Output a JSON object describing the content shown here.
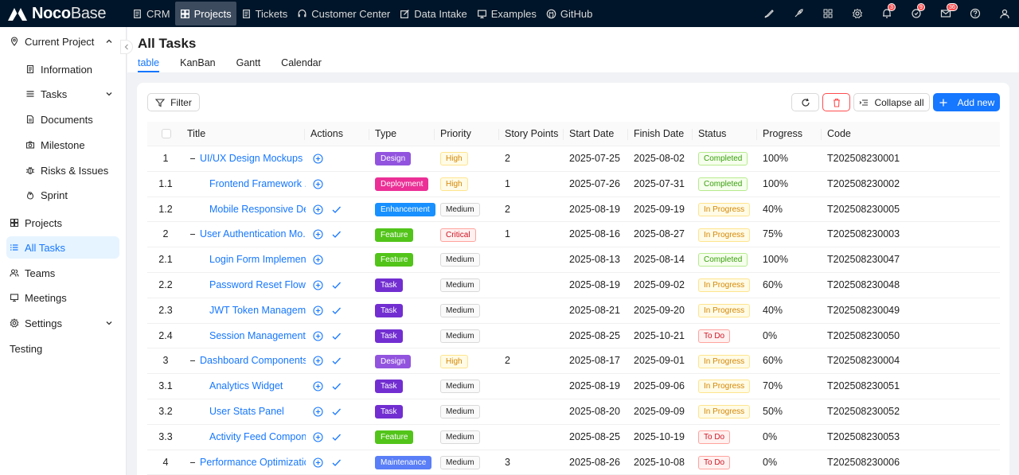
{
  "app": {
    "logo_bold": "Noco",
    "logo_light": "Base"
  },
  "nav": [
    {
      "id": "crm",
      "label": "CRM",
      "icon": "document-icon"
    },
    {
      "id": "projects",
      "label": "Projects",
      "icon": "grid-icon",
      "active": true
    },
    {
      "id": "tickets",
      "label": "Tickets",
      "icon": "document-icon"
    },
    {
      "id": "customer-center",
      "label": "Customer Center",
      "icon": "headset-icon"
    },
    {
      "id": "data-intake",
      "label": "Data Intake",
      "icon": "edit-icon"
    },
    {
      "id": "examples",
      "label": "Examples",
      "icon": "monitor-icon"
    },
    {
      "id": "github",
      "label": "GitHub",
      "icon": "github-icon"
    }
  ],
  "top_badges": {
    "bell": "3",
    "clock": "9",
    "mail": "36"
  },
  "sidebar": {
    "items": [
      {
        "label": "Current Project",
        "icon": "location-icon",
        "chevron": "up"
      },
      {
        "label": "Information",
        "icon": "document-icon"
      },
      {
        "label": "Tasks",
        "icon": "menu-icon",
        "chevron": "down"
      },
      {
        "label": "Documents",
        "icon": "file-icon"
      },
      {
        "label": "Milestone",
        "icon": "camera-icon"
      },
      {
        "label": "Risks & Issues",
        "icon": "bug-icon"
      },
      {
        "label": "Sprint",
        "icon": "fire-icon"
      },
      {
        "label": "Projects",
        "icon": "grid-icon"
      },
      {
        "label": "All Tasks",
        "icon": "list-icon",
        "active": true
      },
      {
        "label": "Teams",
        "icon": "team-icon"
      },
      {
        "label": "Meetings",
        "icon": "monitor-icon"
      },
      {
        "label": "Settings",
        "icon": "gear-icon",
        "chevron": "down"
      },
      {
        "label": "Testing",
        "icon": ""
      }
    ]
  },
  "page": {
    "title": "All Tasks",
    "tabs": [
      "table",
      "KanBan",
      "Gantt",
      "Calendar"
    ]
  },
  "toolbar": {
    "filter_label": "Filter",
    "collapse_label": "Collapse all",
    "add_label": "Add new"
  },
  "table": {
    "columns": [
      "Title",
      "Actions",
      "Type",
      "Priority",
      "Story Points",
      "Start Date",
      "Finish Date",
      "Status",
      "Progress",
      "Code"
    ],
    "rows": [
      {
        "no": "1",
        "level": 0,
        "title": "UI/UX Design Mockups",
        "check": false,
        "type": "Design",
        "priority": "High",
        "points": "2",
        "start": "2025-07-25",
        "finish": "2025-08-02",
        "status": "Completed",
        "progress": "100%",
        "code": "T202508230001"
      },
      {
        "no": "1.1",
        "level": 1,
        "title": "Frontend Framework ...",
        "check": false,
        "type": "Deployment",
        "priority": "High",
        "points": "1",
        "start": "2025-07-26",
        "finish": "2025-07-31",
        "status": "Completed",
        "progress": "100%",
        "code": "T202508230002"
      },
      {
        "no": "1.2",
        "level": 1,
        "title": "Mobile Responsive De...",
        "check": true,
        "type": "Enhancement",
        "priority": "Medium",
        "points": "2",
        "start": "2025-08-19",
        "finish": "2025-09-19",
        "status": "In Progress",
        "progress": "40%",
        "code": "T202508230005"
      },
      {
        "no": "2",
        "level": 0,
        "title": "User Authentication Mo...",
        "check": true,
        "type": "Feature",
        "priority": "Critical",
        "points": "1",
        "start": "2025-08-16",
        "finish": "2025-08-27",
        "status": "In Progress",
        "progress": "75%",
        "code": "T202508230003"
      },
      {
        "no": "2.1",
        "level": 1,
        "title": "Login Form Implemen...",
        "check": false,
        "type": "Feature",
        "priority": "Medium",
        "points": "",
        "start": "2025-08-13",
        "finish": "2025-08-14",
        "status": "Completed",
        "progress": "100%",
        "code": "T202508230047"
      },
      {
        "no": "2.2",
        "level": 1,
        "title": "Password Reset Flow",
        "check": true,
        "type": "Task",
        "priority": "Medium",
        "points": "",
        "start": "2025-08-19",
        "finish": "2025-09-02",
        "status": "In Progress",
        "progress": "60%",
        "code": "T202508230048"
      },
      {
        "no": "2.3",
        "level": 1,
        "title": "JWT Token Managem...",
        "check": true,
        "type": "Task",
        "priority": "Medium",
        "points": "",
        "start": "2025-08-21",
        "finish": "2025-09-20",
        "status": "In Progress",
        "progress": "40%",
        "code": "T202508230049"
      },
      {
        "no": "2.4",
        "level": 1,
        "title": "Session Management",
        "check": true,
        "type": "Task",
        "priority": "Medium",
        "points": "",
        "start": "2025-08-25",
        "finish": "2025-10-21",
        "status": "To Do",
        "progress": "0%",
        "code": "T202508230050"
      },
      {
        "no": "3",
        "level": 0,
        "title": "Dashboard Components",
        "check": true,
        "type": "Design",
        "priority": "High",
        "points": "2",
        "start": "2025-08-17",
        "finish": "2025-09-01",
        "status": "In Progress",
        "progress": "60%",
        "code": "T202508230004"
      },
      {
        "no": "3.1",
        "level": 1,
        "title": "Analytics Widget",
        "check": true,
        "type": "Task",
        "priority": "Medium",
        "points": "",
        "start": "2025-08-19",
        "finish": "2025-09-06",
        "status": "In Progress",
        "progress": "70%",
        "code": "T202508230051"
      },
      {
        "no": "3.2",
        "level": 1,
        "title": "User Stats Panel",
        "check": true,
        "type": "Task",
        "priority": "Medium",
        "points": "",
        "start": "2025-08-20",
        "finish": "2025-09-09",
        "status": "In Progress",
        "progress": "50%",
        "code": "T202508230052"
      },
      {
        "no": "3.3",
        "level": 1,
        "title": "Activity Feed Compon...",
        "check": true,
        "type": "Feature",
        "priority": "Medium",
        "points": "",
        "start": "2025-08-25",
        "finish": "2025-10-19",
        "status": "To Do",
        "progress": "0%",
        "code": "T202508230053"
      },
      {
        "no": "4",
        "level": 0,
        "title": "Performance Optimization",
        "check": true,
        "type": "Maintenance",
        "priority": "Medium",
        "points": "3",
        "start": "2025-08-26",
        "finish": "2025-10-08",
        "status": "To Do",
        "progress": "0%",
        "code": "T202508230006"
      }
    ]
  },
  "colors": {
    "accent": "#1677ff",
    "type": {
      "Design": "#9254de",
      "Deployment": "#eb2f96",
      "Enhancement": "#1890ff",
      "Feature": "#52c41a",
      "Task": "#722ed1",
      "Maintenance": "#597ef7"
    },
    "priority": {
      "High": {
        "bg": "#fffbe6",
        "border": "#ffe58f",
        "fg": "#d48806"
      },
      "Medium": {
        "bg": "#fafafa",
        "border": "#d9d9d9",
        "fg": "#1f1f1f"
      },
      "Critical": {
        "bg": "#fff1f0",
        "border": "#ffa39e",
        "fg": "#cf1322"
      }
    },
    "status": {
      "Completed": {
        "bg": "#f6ffed",
        "border": "#b7eb8f",
        "fg": "#389e0d"
      },
      "In Progress": {
        "bg": "#fffbe6",
        "border": "#ffe58f",
        "fg": "#d48806"
      },
      "To Do": {
        "bg": "#fff1f0",
        "border": "#ffa39e",
        "fg": "#cf1322"
      }
    }
  }
}
